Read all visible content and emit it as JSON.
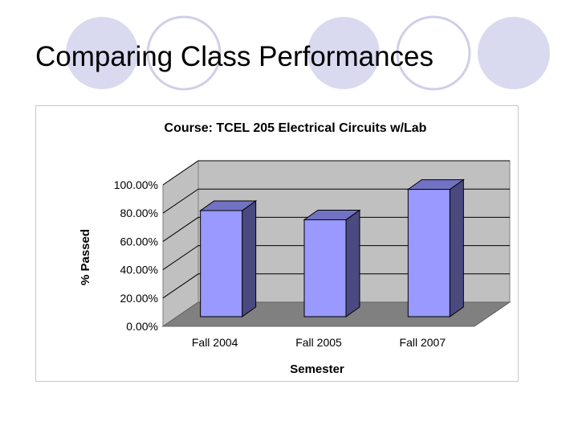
{
  "slide": {
    "title": "Comparing Class Performances"
  },
  "colors": {
    "circle_fill": "#d9d9f0",
    "circle_ring": "#cfcfe8",
    "bar_front": "#9999ff",
    "bar_side": "#4a4a80",
    "bar_top": "#7272c4",
    "wall": "#c0c0c0",
    "floor": "#808080"
  },
  "chart_data": {
    "type": "bar",
    "title": "Course: TCEL 205 Electrical Circuits w/Lab",
    "xlabel": "Semester",
    "ylabel": "% Passed",
    "categories": [
      "Fall 2004",
      "Fall 2005",
      "Fall 2007"
    ],
    "values": [
      0.75,
      0.685,
      0.9
    ],
    "ylim": [
      0,
      1
    ],
    "ytick_labels": [
      "0.00%",
      "20.00%",
      "40.00%",
      "60.00%",
      "80.00%",
      "100.00%"
    ],
    "grid": true,
    "legend": "none",
    "style": "3d"
  }
}
